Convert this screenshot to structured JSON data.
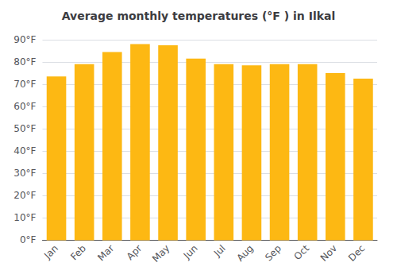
{
  "chart_data": {
    "type": "bar",
    "title": "Average monthly temperatures (°F ) in Ilkal",
    "categories": [
      "Jan",
      "Feb",
      "Mar",
      "Apr",
      "May",
      "Jun",
      "Jul",
      "Aug",
      "Sep",
      "Oct",
      "Nov",
      "Dec"
    ],
    "values": [
      73.5,
      79,
      84.5,
      88,
      87.5,
      81.5,
      79,
      78.5,
      79,
      79,
      75,
      72.5
    ],
    "color": "#FDB813",
    "ylim": [
      0,
      90
    ],
    "yticks": [
      {
        "value": 0,
        "label": "0°F"
      },
      {
        "value": 10,
        "label": "10°F"
      },
      {
        "value": 20,
        "label": "20°F"
      },
      {
        "value": 30,
        "label": "30°F"
      },
      {
        "value": 40,
        "label": "40°F"
      },
      {
        "value": 50,
        "label": "50°F"
      },
      {
        "value": 60,
        "label": "60°F"
      },
      {
        "value": 70,
        "label": "70°F"
      },
      {
        "value": 80,
        "label": "80°F"
      },
      {
        "value": 90,
        "label": "90°F"
      }
    ],
    "grid": true
  }
}
